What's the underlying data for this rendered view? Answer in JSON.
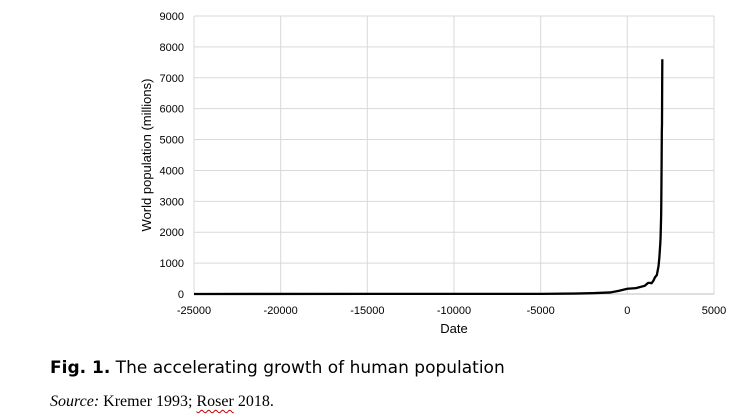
{
  "chart_data": {
    "type": "line",
    "title": "",
    "xlabel": "Date",
    "ylabel": "World population (millions)",
    "xlim": [
      -25000,
      5000
    ],
    "ylim": [
      0,
      9000
    ],
    "x_ticks": [
      -25000,
      -20000,
      -15000,
      -10000,
      -5000,
      0,
      5000
    ],
    "y_ticks": [
      0,
      1000,
      2000,
      3000,
      4000,
      5000,
      6000,
      7000,
      8000,
      9000
    ],
    "grid": true,
    "series": [
      {
        "color": "#000000",
        "x": [
          -25000,
          -10000,
          -5000,
          -3000,
          -2000,
          -1000,
          -500,
          0,
          500,
          1000,
          1200,
          1300,
          1400,
          1500,
          1600,
          1700,
          1800,
          1850,
          1900,
          1920,
          1950,
          1960,
          1970,
          1980,
          1990,
          2000,
          2010,
          2018
        ],
        "y": [
          1,
          4,
          5,
          14,
          27,
          50,
          100,
          170,
          190,
          265,
          360,
          360,
          350,
          425,
          545,
          610,
          900,
          1200,
          1625,
          1860,
          2520,
          3020,
          3700,
          4430,
          5270,
          5500,
          6800,
          7600
        ]
      }
    ]
  },
  "caption": {
    "label": "Fig. 1.",
    "text": " The accelerating growth of human population"
  },
  "source": {
    "label": "Source:",
    "text_before": " Kremer 1993; ",
    "squiggled": "Roser",
    "text_after": " 2018."
  }
}
